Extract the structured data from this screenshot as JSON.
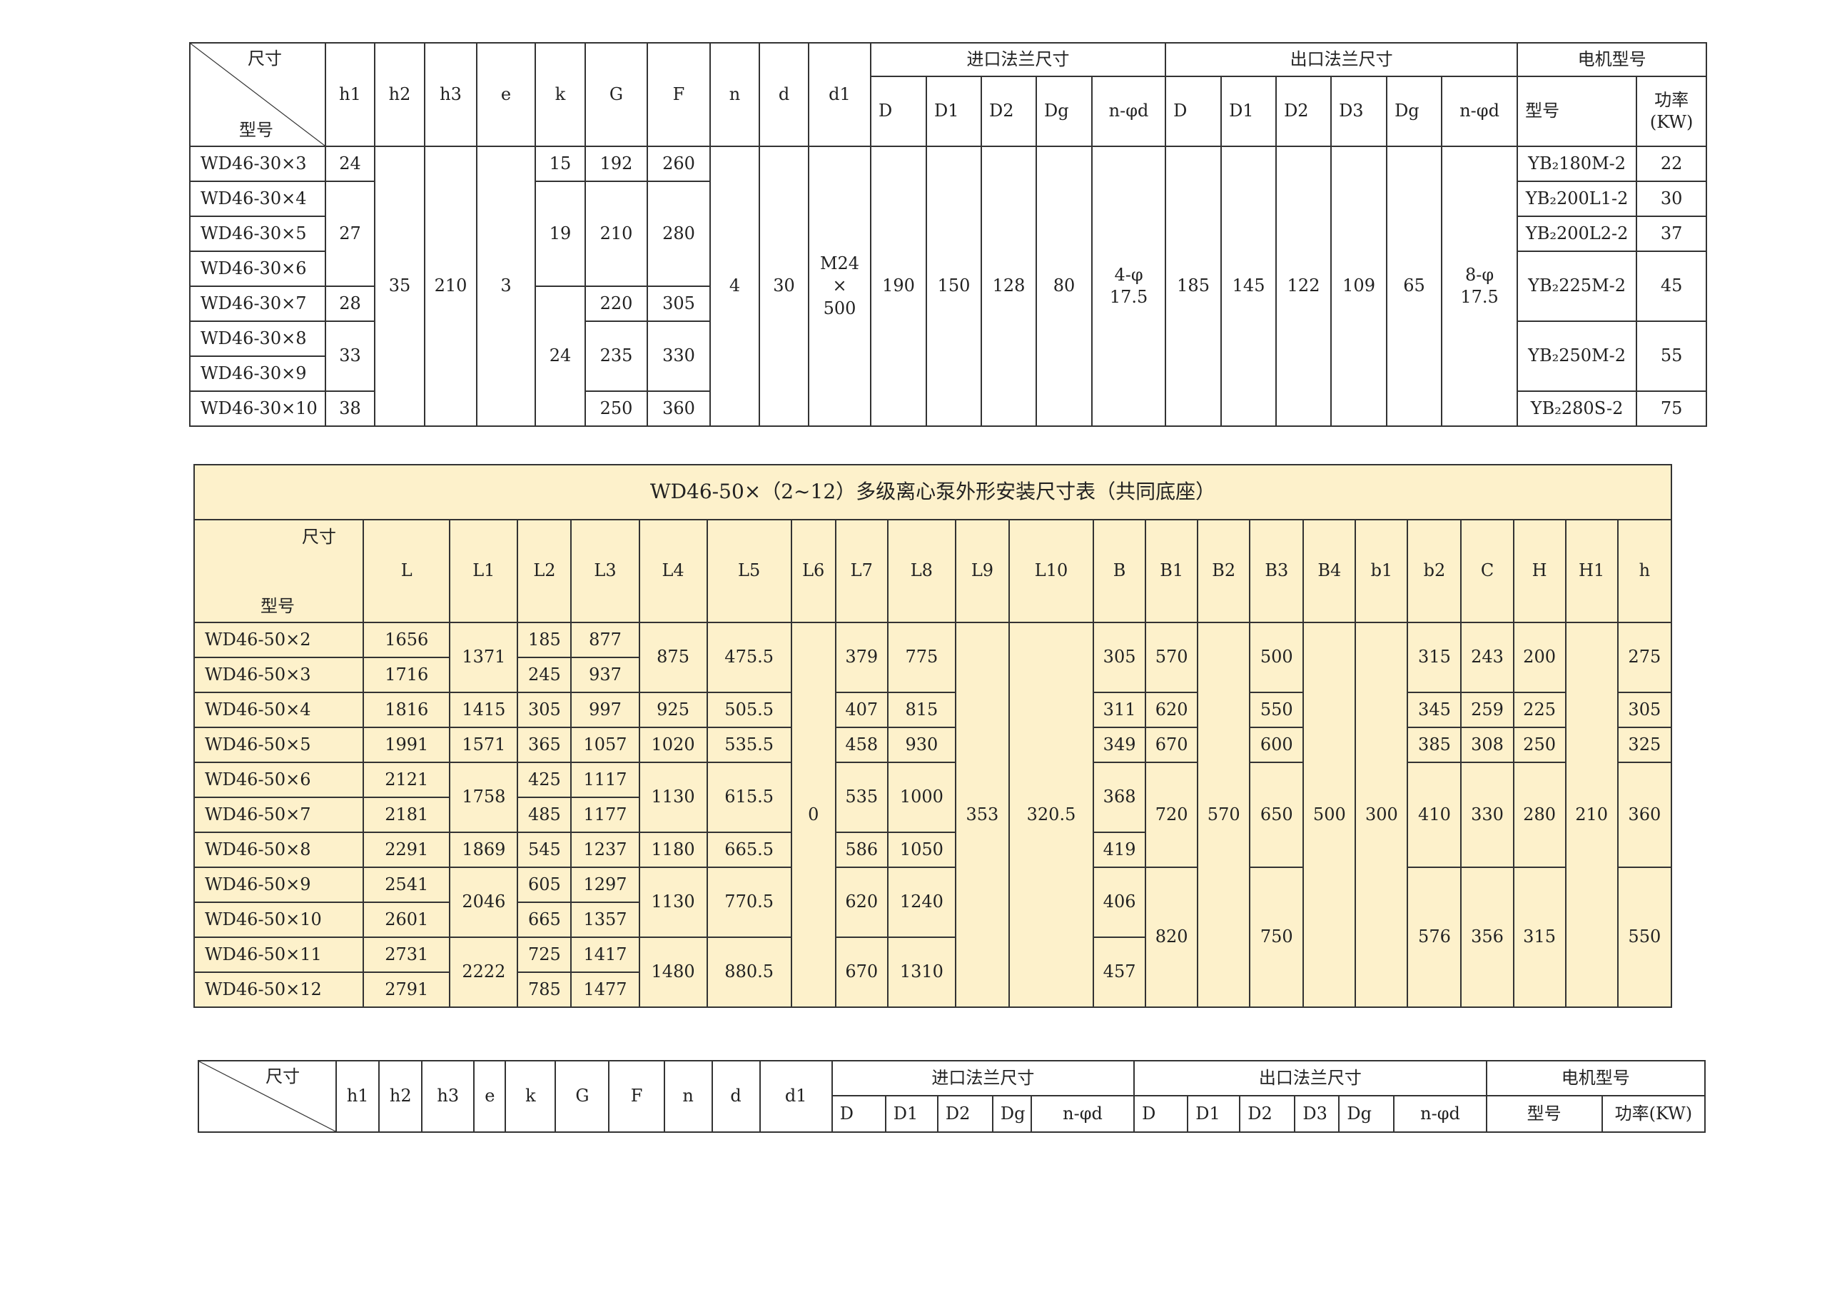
{
  "t1": {
    "header": {
      "size": "尺寸",
      "model": "型号",
      "cols": [
        "h1",
        "h2",
        "h3",
        "e",
        "k",
        "G",
        "F",
        "n",
        "d",
        "d1"
      ],
      "inlet": "进口法兰尺寸",
      "outlet": "出口法兰尺寸",
      "motor": "电机型号",
      "inlet_cols": [
        "D",
        "D1",
        "D2",
        "Dg",
        "n-φd"
      ],
      "outlet_cols": [
        "D",
        "D1",
        "D2",
        "D3",
        "Dg",
        "n-φd"
      ],
      "motor_model": "型号",
      "power": "功率",
      "power_unit": "(KW)"
    },
    "models": [
      "WD46-30×3",
      "WD46-30×4",
      "WD46-30×5",
      "WD46-30×6",
      "WD46-30×7",
      "WD46-30×8",
      "WD46-30×9",
      "WD46-30×10"
    ],
    "h1": [
      "24",
      "27",
      "28",
      "33",
      "38"
    ],
    "h2": "35",
    "h3": "210",
    "e": "3",
    "k": [
      "15",
      "19",
      "24"
    ],
    "G": [
      "192",
      "210",
      "220",
      "235",
      "250"
    ],
    "F": [
      "260",
      "280",
      "305",
      "330",
      "360"
    ],
    "n": "4",
    "d": "30",
    "d1": [
      "M24",
      "×",
      "500"
    ],
    "inlet": {
      "D": "190",
      "D1": "150",
      "D2": "128",
      "Dg": "80",
      "nphid": [
        "4-φ",
        "17.5"
      ]
    },
    "outlet": {
      "D": "185",
      "D1": "145",
      "D2": "122",
      "D3": "109",
      "Dg": "65",
      "nphid": [
        "8-φ",
        "17.5"
      ]
    },
    "motor_models": [
      "YB₂180M-2",
      "YB₂200L1-2",
      "YB₂200L2-2",
      "YB₂225M-2",
      "YB₂250M-2",
      "YB₂280S-2"
    ],
    "power": [
      "22",
      "30",
      "37",
      "45",
      "55",
      "75"
    ]
  },
  "t2": {
    "title": "WD46-50×（2~12）多级离心泵外形安装尺寸表（共同底座）",
    "header": {
      "size": "尺寸",
      "model": "型号",
      "cols": [
        "L",
        "L1",
        "L2",
        "L3",
        "L4",
        "L5",
        "L6",
        "L7",
        "L8",
        "L9",
        "L10",
        "B",
        "B1",
        "B2",
        "B3",
        "B4",
        "b1",
        "b2",
        "C",
        "H",
        "H1",
        "h"
      ]
    },
    "models": [
      "WD46-50×2",
      "WD46-50×3",
      "WD46-50×4",
      "WD46-50×5",
      "WD46-50×6",
      "WD46-50×7",
      "WD46-50×8",
      "WD46-50×9",
      "WD46-50×10",
      "WD46-50×11",
      "WD46-50×12"
    ],
    "L": [
      "1656",
      "1716",
      "1816",
      "1991",
      "2121",
      "2181",
      "2291",
      "2541",
      "2601",
      "2731",
      "2791"
    ],
    "L1": [
      "1371",
      "1415",
      "1571",
      "1758",
      "1869",
      "2046",
      "2222"
    ],
    "L2": [
      "185",
      "245",
      "305",
      "365",
      "425",
      "485",
      "545",
      "605",
      "665",
      "725",
      "785"
    ],
    "L3": [
      "877",
      "937",
      "997",
      "1057",
      "1117",
      "1177",
      "1237",
      "1297",
      "1357",
      "1417",
      "1477"
    ],
    "L4": [
      "875",
      "925",
      "1020",
      "1130",
      "1180",
      "1130",
      "1480"
    ],
    "L5": [
      "475.5",
      "505.5",
      "535.5",
      "615.5",
      "665.5",
      "770.5",
      "880.5"
    ],
    "L6": "0",
    "L7": [
      "379",
      "407",
      "458",
      "535",
      "586",
      "620",
      "670"
    ],
    "L8": [
      "775",
      "815",
      "930",
      "1000",
      "1050",
      "1240",
      "1310"
    ],
    "L9": "353",
    "L10": "320.5",
    "B": [
      "305",
      "311",
      "349",
      "368",
      "419",
      "406",
      "457"
    ],
    "B1": [
      "570",
      "620",
      "670",
      "720",
      "820"
    ],
    "B2": "570",
    "B3": [
      "500",
      "550",
      "600",
      "650",
      "750"
    ],
    "B4": "500",
    "b1": "300",
    "b2": [
      "315",
      "345",
      "385",
      "410",
      "576"
    ],
    "C": [
      "243",
      "259",
      "308",
      "330",
      "356"
    ],
    "H": [
      "200",
      "225",
      "250",
      "280",
      "315"
    ],
    "H1": "210",
    "h": [
      "275",
      "305",
      "325",
      "360",
      "550"
    ]
  },
  "t3": {
    "header": {
      "size": "尺寸",
      "cols": [
        "h1",
        "h2",
        "h3",
        "e",
        "k",
        "G",
        "F",
        "n",
        "d",
        "d1"
      ],
      "inlet": "进口法兰尺寸",
      "outlet": "出口法兰尺寸",
      "motor": "电机型号",
      "inlet_cols": [
        "D",
        "D1",
        "D2",
        "Dg",
        "n-φd"
      ],
      "outlet_cols": [
        "D",
        "D1",
        "D2",
        "D3",
        "Dg",
        "n-φd"
      ],
      "motor_model": "型号",
      "power": "功率(KW)"
    }
  }
}
